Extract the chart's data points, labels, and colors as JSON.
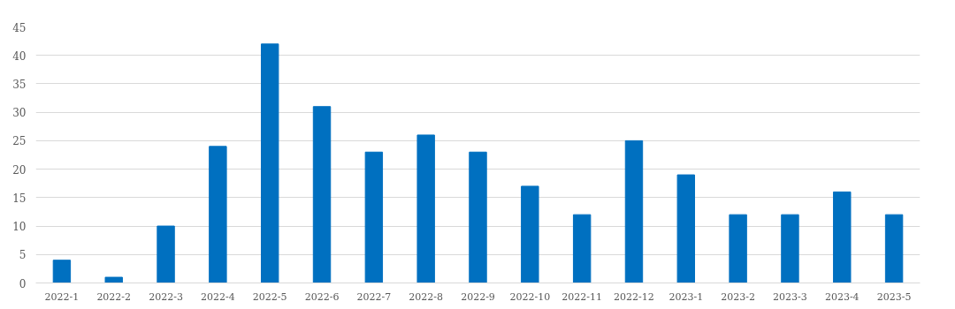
{
  "chart_data": {
    "type": "bar",
    "categories": [
      "2022-1",
      "2022-2",
      "2022-3",
      "2022-4",
      "2022-5",
      "2022-6",
      "2022-7",
      "2022-8",
      "2022-9",
      "2022-10",
      "2022-11",
      "2022-12",
      "2023-1",
      "2023-2",
      "2023-3",
      "2023-4",
      "2023-5"
    ],
    "values": [
      4,
      1,
      10,
      24,
      42,
      31,
      23,
      26,
      23,
      17,
      12,
      25,
      19,
      12,
      12,
      16,
      12
    ],
    "color": "#0070c0",
    "ylim": [
      0,
      45
    ],
    "yticks": [
      0,
      5,
      10,
      15,
      20,
      25,
      30,
      35,
      40,
      45
    ],
    "grid": "y"
  }
}
